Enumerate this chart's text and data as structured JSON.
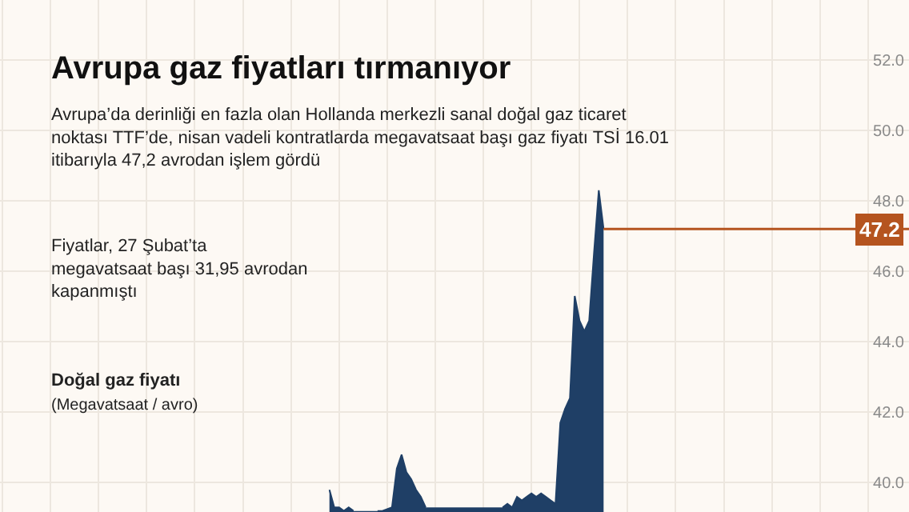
{
  "chart_data": {
    "type": "area",
    "title": "Avrupa gaz fiyatları tırmanıyor",
    "subtitle": "Avrupa’da derinliği en fazla olan Hollanda merkezli sanal doğal gaz ticaret\nnoktası TTF’de, nisan vadeli kontratlarda megavatsaat başı gaz fiyatı TSİ 16.01\nitibarıyla 47,2 avrodan işlem gördü",
    "annotations": [
      "Fiyatlar, 27 Şubat’ta\nmegavatsaat başı 31,95 avrodan\nkapanmıştı",
      "Doğal gaz fiyatı",
      "(Megavatsaat / avro)"
    ],
    "categories": [
      null,
      null,
      null,
      null,
      null,
      null,
      null,
      null,
      null,
      null,
      null,
      null,
      null,
      null,
      null,
      null,
      null,
      null,
      null,
      null,
      null,
      null,
      null,
      null,
      null,
      null,
      null,
      null,
      null,
      null,
      null,
      null,
      null,
      null,
      null,
      null,
      null,
      null,
      null,
      null,
      null,
      null,
      null,
      null,
      null,
      null,
      null,
      null,
      null,
      null,
      null,
      null,
      null,
      null,
      null,
      null,
      null,
      null,
      null,
      null,
      null,
      null,
      null,
      null,
      null,
      null,
      null,
      null,
      null,
      null,
      null,
      null,
      null,
      null,
      null,
      null,
      null,
      null,
      null,
      null,
      null,
      null,
      null,
      null,
      null,
      null,
      null,
      null,
      null,
      null,
      null,
      null,
      null,
      null,
      null,
      null,
      null,
      null,
      null,
      null,
      null,
      null,
      null,
      null,
      null,
      null,
      null,
      null,
      null,
      null,
      null,
      null,
      null,
      null,
      null,
      null,
      null,
      null,
      null,
      null,
      null,
      null,
      null,
      null,
      null,
      null,
      null,
      null,
      null,
      null,
      null,
      null,
      null,
      null,
      null,
      null,
      null,
      null,
      null,
      null,
      null,
      null,
      null,
      null,
      null,
      null,
      null,
      null,
      null,
      null,
      null,
      null,
      null,
      null,
      null,
      null,
      null,
      null,
      null,
      null,
      null,
      null,
      null,
      null,
      null,
      null,
      null,
      null,
      null,
      null,
      null,
      null,
      null,
      null,
      null,
      null,
      null,
      null,
      null,
      null,
      null,
      null,
      null,
      null,
      null,
      null,
      null,
      null,
      null
    ],
    "series": [
      {
        "color": "#1f3f66",
        "values": [
          null,
          null,
          null,
          null,
          null,
          null,
          null,
          null,
          null,
          null,
          null,
          null,
          null,
          null,
          null,
          null,
          null,
          null,
          null,
          null,
          null,
          null,
          null,
          null,
          null,
          null,
          null,
          null,
          null,
          null,
          null,
          null,
          null,
          null,
          null,
          null,
          null,
          null,
          null,
          null,
          null,
          null,
          null,
          null,
          null,
          null,
          null,
          null,
          null,
          null,
          null,
          null,
          null,
          null,
          null,
          null,
          null,
          null,
          null,
          null,
          null,
          null,
          null,
          null,
          null,
          null,
          null,
          null,
          39.8,
          39.3,
          39.3,
          39.2,
          39.3,
          39.2,
          null,
          null,
          null,
          null,
          39.2,
          39.2,
          39.25,
          39.3,
          40.4,
          40.8,
          40.3,
          40.1,
          39.8,
          39.6,
          39.3,
          null,
          null,
          null,
          null,
          null,
          null,
          null,
          null,
          null,
          null,
          null,
          null,
          null,
          null,
          null,
          39.3,
          39.4,
          39.3,
          39.6,
          39.5,
          39.6,
          39.7,
          39.6,
          39.7,
          39.6,
          39.5,
          39.4,
          41.7,
          42.1,
          42.4,
          45.3,
          44.6,
          44.3,
          44.6,
          46.5,
          48.3,
          47.2,
          null,
          null,
          null,
          null,
          null,
          null,
          null,
          null,
          null,
          null,
          null,
          null,
          null,
          null,
          null,
          null,
          null,
          null,
          null,
          null,
          null,
          null,
          null,
          null,
          null,
          null,
          null,
          null,
          null,
          null,
          null,
          null,
          null,
          null,
          null,
          null,
          null,
          null,
          null,
          null,
          null,
          null,
          null,
          null,
          null,
          null,
          null,
          null,
          null,
          null,
          null,
          null,
          null,
          null,
          null,
          null,
          null,
          null,
          null,
          null,
          null,
          null,
          null
        ]
      }
    ],
    "ylim": [
      39.17,
      53.7
    ],
    "yticks": [
      {
        "value": 40,
        "label": "40.0"
      },
      {
        "value": 42,
        "label": "42.0"
      },
      {
        "value": 44,
        "label": "44.0"
      },
      {
        "value": 46,
        "label": "46.0"
      },
      {
        "value": 48,
        "label": "48.0"
      },
      {
        "value": 50,
        "label": "50.0"
      },
      {
        "value": 52,
        "label": "52.0"
      }
    ],
    "ref_lines": [
      {
        "axis": "y",
        "value": 47.2,
        "label": "47.2",
        "color": "#b5541f"
      }
    ],
    "grid": true,
    "tick_labels": "y"
  }
}
